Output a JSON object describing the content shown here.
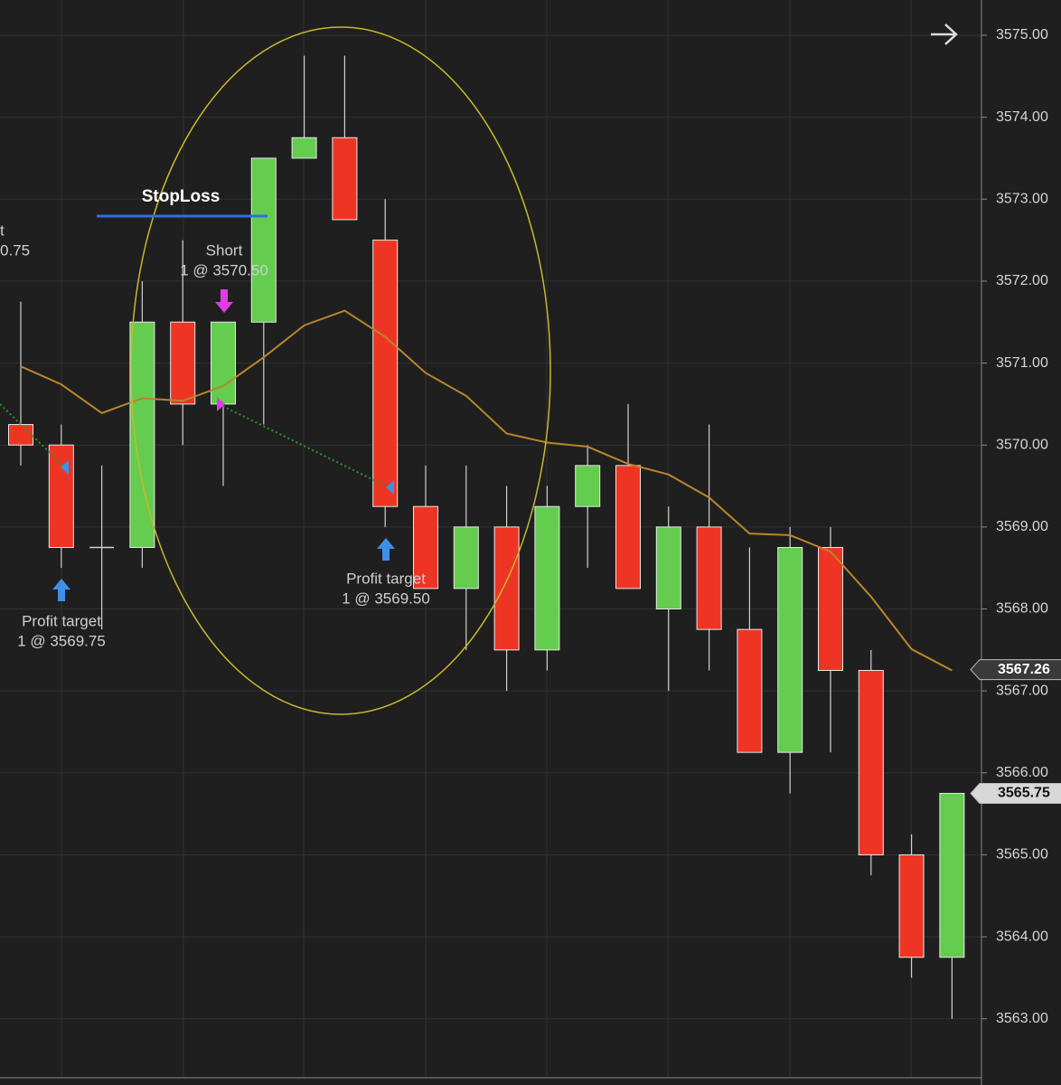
{
  "chart_data": {
    "type": "candlestick",
    "open": [
      3570.25,
      3570.0,
      3568.75,
      3568.75,
      3571.5,
      3570.5,
      3571.5,
      3573.5,
      3573.75,
      3572.5,
      3569.25,
      3568.25,
      3569.0,
      3567.5,
      3569.25,
      3569.75,
      3568.0,
      3569.0,
      3567.75,
      3566.25,
      3568.75,
      3567.25,
      3565.0,
      3563.75
    ],
    "high": [
      3571.75,
      3570.25,
      3569.75,
      3572.0,
      3572.5,
      3571.5,
      3573.5,
      3574.75,
      3574.75,
      3573.0,
      3569.75,
      3569.75,
      3569.5,
      3569.5,
      3570.0,
      3570.5,
      3569.25,
      3570.25,
      3568.75,
      3569.0,
      3569.0,
      3567.5,
      3565.25,
      3565.75
    ],
    "low": [
      3569.75,
      3568.5,
      3567.75,
      3568.5,
      3570.0,
      3569.5,
      3570.25,
      3573.5,
      3572.75,
      3569.0,
      3568.25,
      3567.5,
      3567.0,
      3567.25,
      3568.5,
      3568.25,
      3567.0,
      3567.25,
      3566.25,
      3565.75,
      3566.25,
      3564.75,
      3563.5,
      3563.0
    ],
    "close": [
      3570.0,
      3568.75,
      3568.75,
      3571.5,
      3570.5,
      3571.5,
      3573.5,
      3573.75,
      3572.75,
      3569.25,
      3568.25,
      3569.0,
      3567.5,
      3569.25,
      3569.75,
      3568.25,
      3569.0,
      3567.75,
      3566.25,
      3568.75,
      3567.25,
      3565.0,
      3563.75,
      3565.75
    ],
    "up_color": "#64cc4f",
    "down_color": "#ee3524",
    "moving_average": {
      "color": "#b8862a",
      "values": [
        3570.96,
        3570.74,
        3570.39,
        3570.57,
        3570.54,
        3570.72,
        3571.07,
        3571.46,
        3571.64,
        3571.32,
        3570.88,
        3570.6,
        3570.14,
        3570.03,
        3569.98,
        3569.77,
        3569.64,
        3569.36,
        3568.92,
        3568.9,
        3568.7,
        3568.15,
        3567.51,
        3567.25
      ]
    },
    "ylim": [
      3562.28,
      3575.43
    ],
    "yticks": [
      {
        "value": 3563,
        "label": "3563.00"
      },
      {
        "value": 3564,
        "label": "3564.00"
      },
      {
        "value": 3565,
        "label": "3565.00"
      },
      {
        "value": 3566,
        "label": "3566.00"
      },
      {
        "value": 3567,
        "label": "3567.00"
      },
      {
        "value": 3568,
        "label": "3568.00"
      },
      {
        "value": 3569,
        "label": "3569.00"
      },
      {
        "value": 3570,
        "label": "3570.00"
      },
      {
        "value": 3571,
        "label": "3571.00"
      },
      {
        "value": 3572,
        "label": "3572.00"
      },
      {
        "value": 3573,
        "label": "3573.00"
      },
      {
        "value": 3574,
        "label": "3574.00"
      },
      {
        "value": 3575,
        "label": "3575.00"
      }
    ],
    "grid": true,
    "price_markers": [
      3567.26,
      3565.75
    ],
    "annotations": [
      "StopLoss",
      "Short",
      "1 @ 3570.50",
      "Profit target",
      "1 @ 3569.75",
      "Profit target",
      "1 @ 3569.50",
      "t",
      "0.75"
    ]
  }
}
